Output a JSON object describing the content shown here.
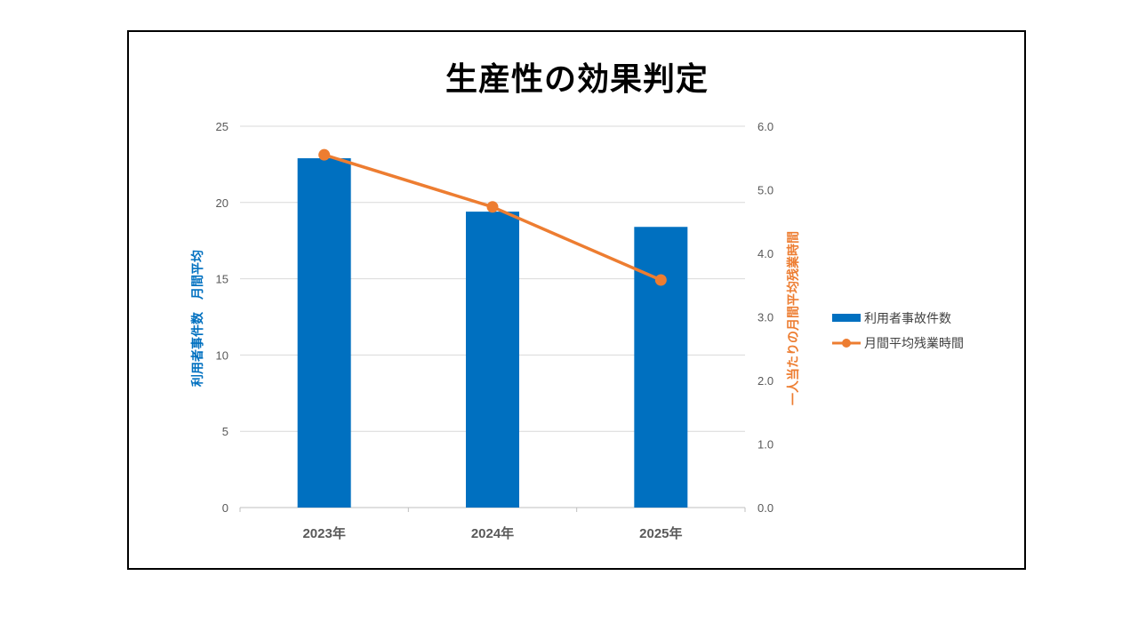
{
  "chart_data": {
    "type": "bar",
    "title": "生産性の効果判定",
    "categories": [
      "2023年",
      "2024年",
      "2025年"
    ],
    "series": [
      {
        "name": "利用者事故件数",
        "type": "bar",
        "axis": "left",
        "values": [
          22.9,
          19.4,
          18.4
        ],
        "color": "#0070C0"
      },
      {
        "name": "月間平均残業時間",
        "type": "line",
        "axis": "right",
        "values": [
          5.55,
          4.73,
          3.58
        ],
        "color": "#ED7D31"
      }
    ],
    "y_left": {
      "label": "利用者事件数　月間平均",
      "ylim": [
        0,
        25
      ],
      "ticks": [
        "0",
        "5",
        "10",
        "15",
        "20",
        "25"
      ],
      "color": "#0070C0"
    },
    "y_right": {
      "label": "一人当たりの月間平均残業時間",
      "ylim": [
        0,
        6
      ],
      "ticks": [
        "0.0",
        "1.0",
        "2.0",
        "3.0",
        "4.0",
        "5.0",
        "6.0"
      ],
      "color": "#ED7D31"
    },
    "grid": true,
    "legend": "right"
  }
}
